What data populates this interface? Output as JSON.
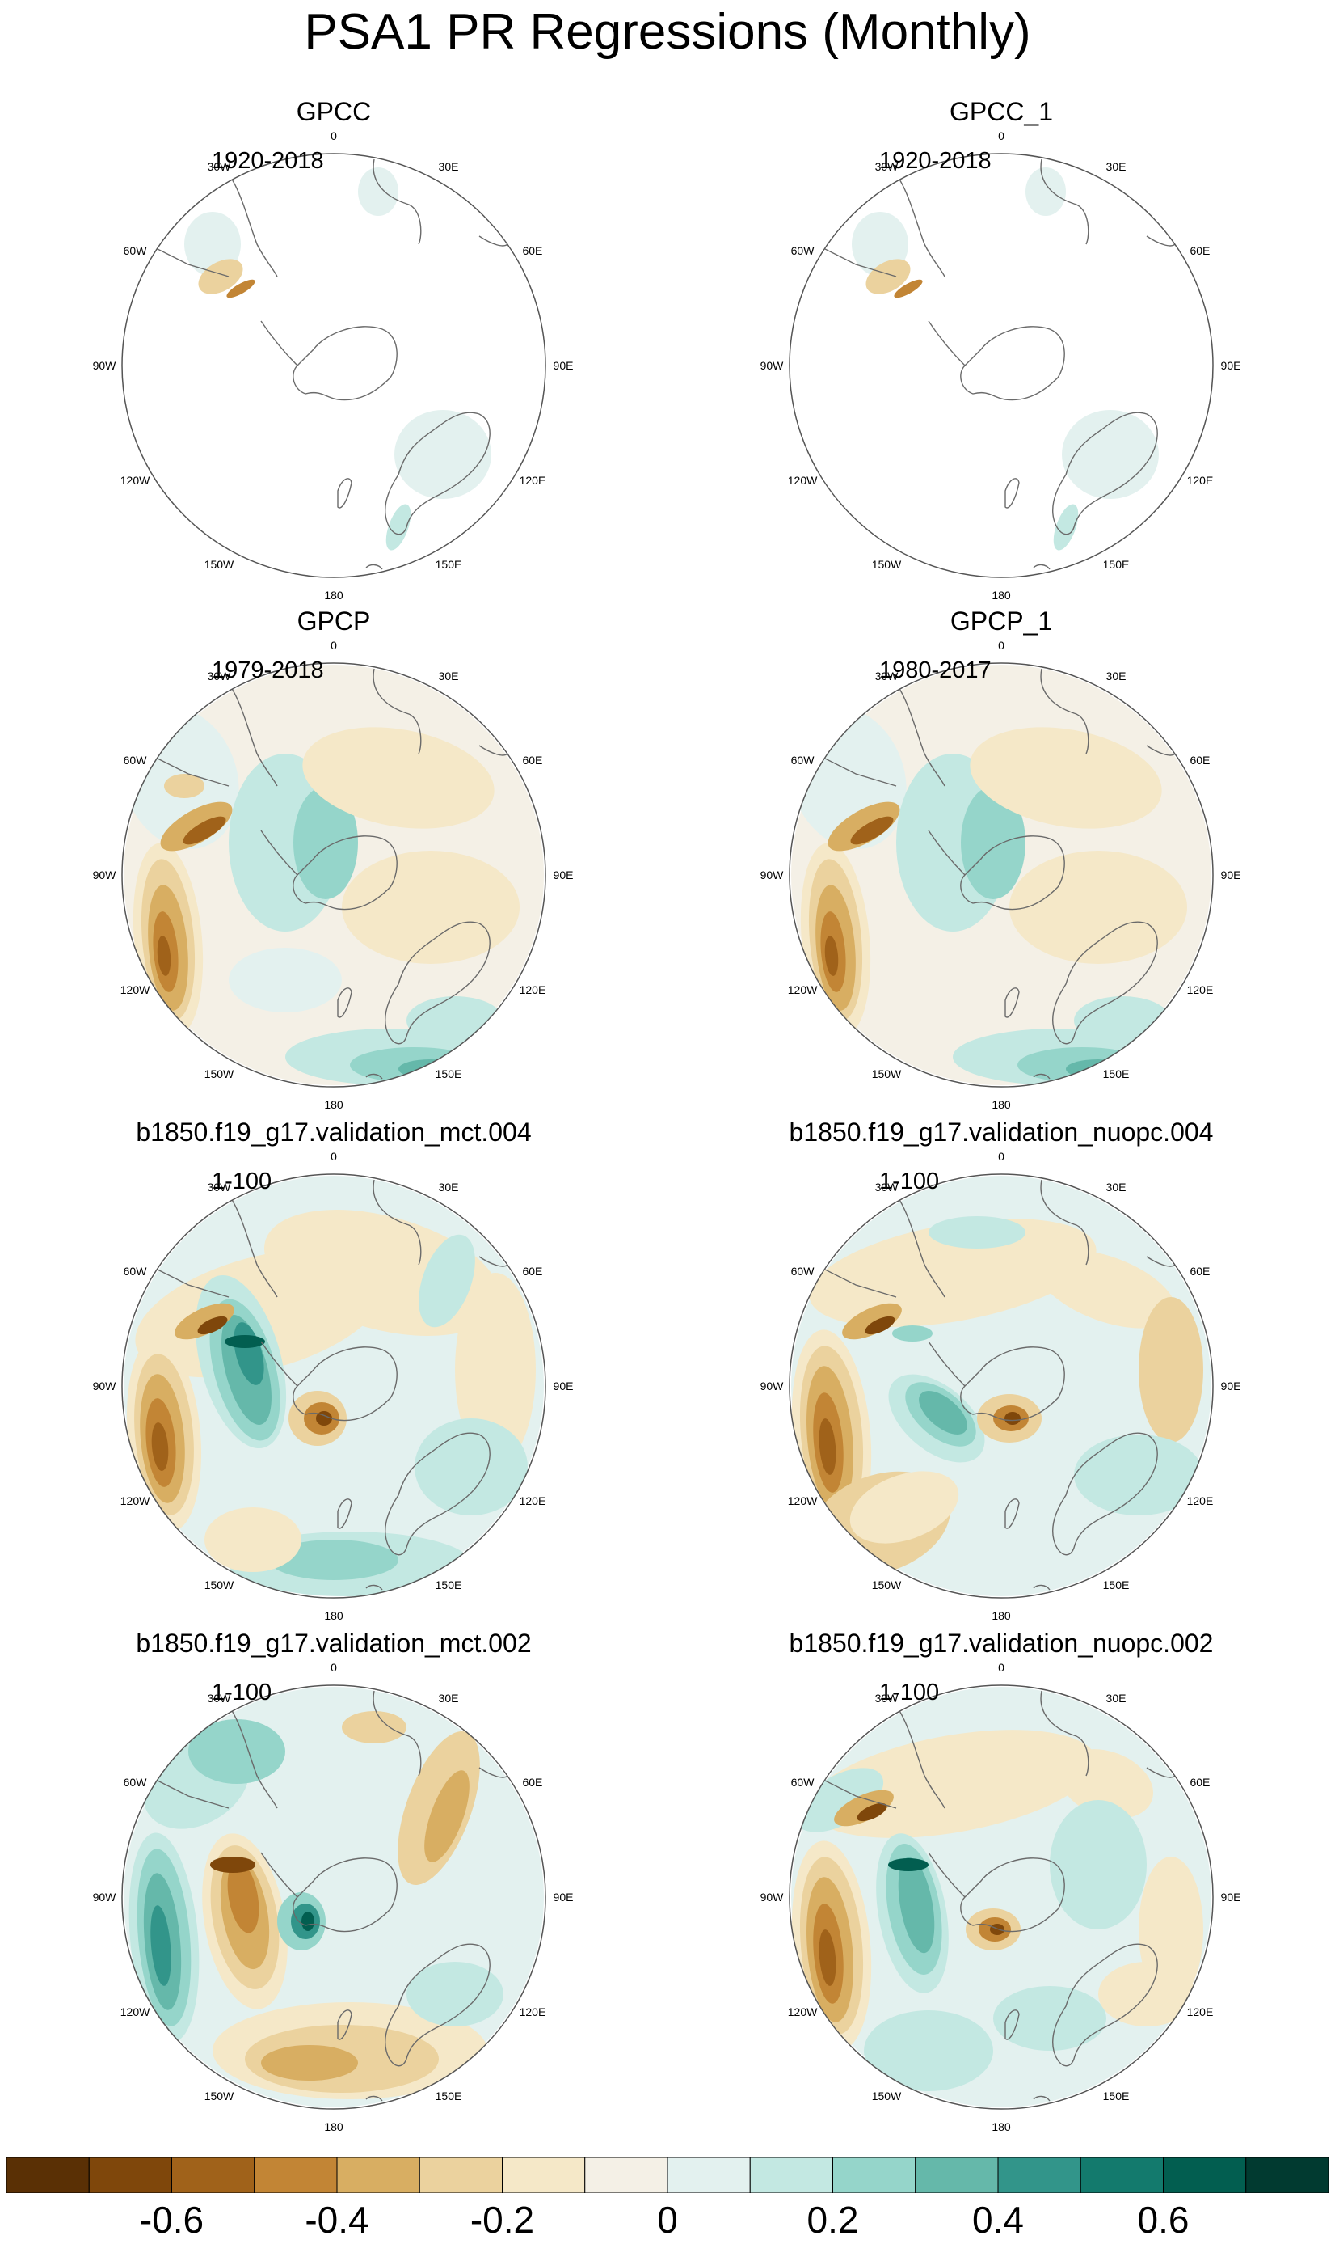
{
  "title": "PSA1 PR Regressions (Monthly)",
  "colors": {
    "scale": [
      "#5a3005",
      "#7f470b",
      "#a0621a",
      "#c28535",
      "#d8ae62",
      "#ebd29e",
      "#f5e8c8",
      "#f4f0e6",
      "#e3f1ef",
      "#c3e8e2",
      "#95d5ca",
      "#65b8aa",
      "#32958a",
      "#137a6d",
      "#025e50",
      "#013a30"
    ],
    "coast": "#6a6a6a",
    "circle": "#555555"
  },
  "lon_labels": [
    "0",
    "30E",
    "60E",
    "90E",
    "120E",
    "150E",
    "180",
    "150W",
    "120W",
    "90W",
    "60W",
    "30W"
  ],
  "panels": [
    {
      "id": "gpcc",
      "title": "GPCC",
      "period": "1920-2018"
    },
    {
      "id": "gpcc_1",
      "title": "GPCC_1",
      "period": "1920-2018"
    },
    {
      "id": "gpcp",
      "title": "GPCP",
      "period": "1979-2018"
    },
    {
      "id": "gpcp_1",
      "title": "GPCP_1",
      "period": "1980-2017"
    },
    {
      "id": "mct004",
      "title": "b1850.f19_g17.validation_mct.004",
      "period": "1-100"
    },
    {
      "id": "nuopc004",
      "title": "b1850.f19_g17.validation_nuopc.004",
      "period": "1-100"
    },
    {
      "id": "mct002",
      "title": "b1850.f19_g17.validation_mct.002",
      "period": "1-100"
    },
    {
      "id": "nuopc002",
      "title": "b1850.f19_g17.validation_nuopc.002",
      "period": "1-100"
    }
  ],
  "colorbar": {
    "labels": [
      "-0.6",
      "-0.4",
      "-0.2",
      "0",
      "0.2",
      "0.4",
      "0.6"
    ]
  }
}
